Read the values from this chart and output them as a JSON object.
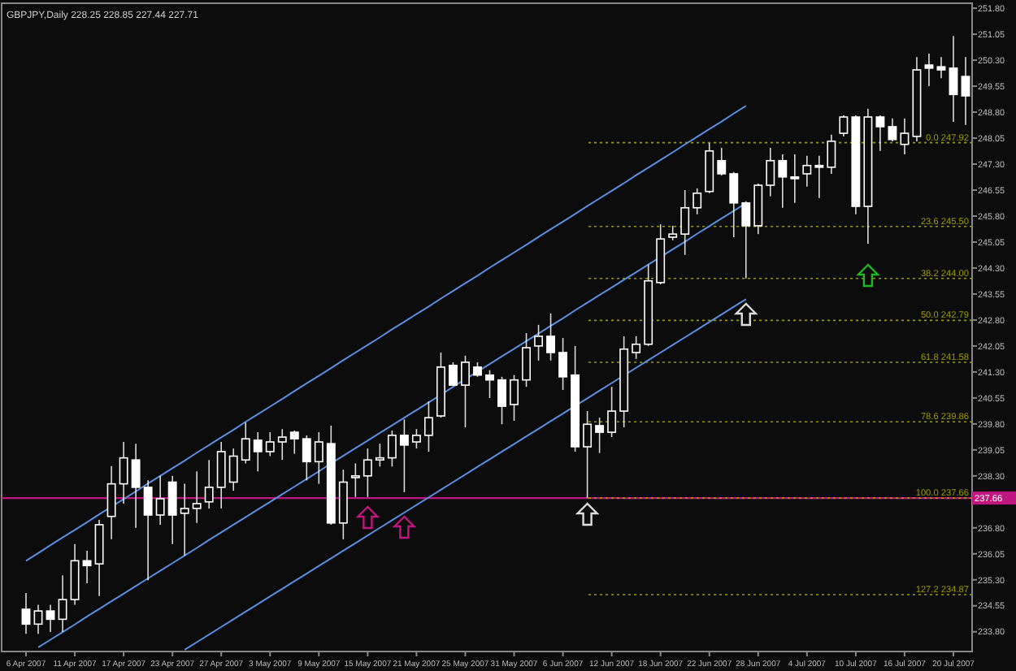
{
  "chart_data": {
    "type": "candlestick",
    "title": "GBPJPY,Daily  228.25 228.85 227.44 227.71",
    "categories": [
      "6 Apr 2007",
      null,
      null,
      null,
      "11 Apr 2007",
      null,
      null,
      null,
      "17 Apr 2007",
      null,
      null,
      null,
      "23 Apr 2007",
      null,
      null,
      null,
      "27 Apr 2007",
      null,
      null,
      null,
      "3 May 2007",
      null,
      null,
      null,
      "9 May 2007",
      null,
      null,
      null,
      "15 May 2007",
      null,
      null,
      null,
      "21 May 2007",
      null,
      null,
      null,
      "25 May 2007",
      null,
      null,
      null,
      "31 May 2007",
      null,
      null,
      null,
      "6 Jun 2007",
      null,
      null,
      null,
      "12 Jun 2007",
      null,
      null,
      null,
      "18 Jun 2007",
      null,
      null,
      null,
      "22 Jun 2007",
      null,
      null,
      null,
      "28 Jun 2007",
      null,
      null,
      null,
      "4 Jul 2007",
      null,
      null,
      null,
      "10 Jul 2007",
      null,
      null,
      null,
      "16 Jul 2007",
      null,
      null,
      null,
      "20 Jul 2007",
      null
    ],
    "series": [
      {
        "type": "line",
        "color": "#5b8fe0",
        "values": [
          235.85,
          236.07,
          236.3,
          236.52,
          236.74,
          236.96,
          237.19,
          237.41,
          237.63,
          237.85,
          238.08,
          238.3,
          238.52,
          238.74,
          238.97,
          239.19,
          239.41,
          239.63,
          239.86,
          240.08,
          240.3,
          240.52,
          240.75,
          240.97,
          241.19,
          241.41,
          241.64,
          241.86,
          242.08,
          242.3,
          242.53,
          242.75,
          242.97,
          243.19,
          243.42,
          243.64,
          243.86,
          244.08,
          244.31,
          244.53,
          244.75,
          244.97,
          245.2,
          245.42,
          245.64,
          245.86,
          246.09,
          246.31,
          246.53,
          246.75,
          246.98,
          247.2,
          247.42,
          247.64,
          247.87,
          248.09,
          248.31,
          248.53,
          248.76,
          248.98,
          null,
          null,
          null,
          null,
          null,
          null,
          null,
          null,
          null,
          null,
          null,
          null,
          null,
          null,
          null,
          null,
          null,
          null
        ]
      },
      {
        "type": "line",
        "color": "#5b8fe0",
        "values": [
          null,
          233.35,
          233.57,
          233.79,
          234.01,
          234.24,
          234.46,
          234.68,
          234.9,
          235.12,
          235.34,
          235.56,
          235.78,
          236.0,
          236.22,
          236.45,
          236.67,
          236.89,
          237.11,
          237.33,
          237.55,
          237.77,
          237.99,
          238.21,
          238.43,
          238.66,
          238.88,
          239.1,
          239.32,
          239.54,
          239.76,
          239.98,
          240.2,
          240.42,
          240.64,
          240.87,
          241.09,
          241.31,
          241.53,
          241.75,
          241.97,
          242.19,
          242.41,
          242.63,
          242.85,
          243.08,
          243.3,
          243.52,
          243.74,
          243.96,
          244.18,
          244.4,
          244.62,
          244.84,
          245.06,
          245.29,
          245.51,
          245.73,
          245.95,
          246.17,
          null,
          null,
          null,
          null,
          null,
          null,
          null,
          null,
          null,
          null,
          null,
          null,
          null,
          null,
          null,
          null,
          null,
          null
        ]
      },
      {
        "type": "line",
        "color": "#5b8fe0",
        "values": [
          null,
          null,
          null,
          null,
          null,
          null,
          null,
          null,
          null,
          null,
          null,
          null,
          null,
          233.28,
          233.5,
          233.72,
          233.94,
          234.16,
          234.38,
          234.6,
          234.82,
          235.04,
          235.26,
          235.48,
          235.7,
          235.92,
          236.14,
          236.36,
          236.58,
          236.8,
          237.02,
          237.24,
          237.46,
          237.68,
          237.9,
          238.12,
          238.34,
          238.56,
          238.78,
          239.0,
          239.22,
          239.44,
          239.66,
          239.88,
          240.1,
          240.32,
          240.54,
          240.76,
          240.98,
          241.2,
          241.42,
          241.64,
          241.86,
          242.08,
          242.3,
          242.52,
          242.74,
          242.96,
          243.18,
          243.4,
          null,
          null,
          null,
          null,
          null,
          null,
          null,
          null,
          null,
          null,
          null,
          null,
          null,
          null,
          null,
          null,
          null,
          null
        ]
      },
      {
        "type": "candlestick",
        "color": "#ffffff",
        "ohlc": [
          [
            234.45,
            234.92,
            233.74,
            234.02
          ],
          [
            234.02,
            234.58,
            233.74,
            234.4
          ],
          [
            234.4,
            234.58,
            233.79,
            234.16
          ],
          [
            234.16,
            235.43,
            233.79,
            234.73
          ],
          [
            234.73,
            236.33,
            234.58,
            235.85
          ],
          [
            235.85,
            236.14,
            235.2,
            235.71
          ],
          [
            235.76,
            237.03,
            234.83,
            236.89
          ],
          [
            237.13,
            238.58,
            236.47,
            238.07
          ],
          [
            238.07,
            239.28,
            237.5,
            238.82
          ],
          [
            238.76,
            239.23,
            236.8,
            237.97
          ],
          [
            237.97,
            238.17,
            235.29,
            237.17
          ],
          [
            237.17,
            238.3,
            236.89,
            237.64
          ],
          [
            238.12,
            238.3,
            236.33,
            237.17
          ],
          [
            237.22,
            238.07,
            236.0,
            237.36
          ],
          [
            237.36,
            238.43,
            236.94,
            237.5
          ],
          [
            237.55,
            238.76,
            237.36,
            237.97
          ],
          [
            237.97,
            239.28,
            237.36,
            239.0
          ],
          [
            238.12,
            239.09,
            237.87,
            238.87
          ],
          [
            238.76,
            239.84,
            238.66,
            239.37
          ],
          [
            239.33,
            239.56,
            238.43,
            239.0
          ],
          [
            239.0,
            239.56,
            238.87,
            239.28
          ],
          [
            239.28,
            239.65,
            238.76,
            239.42
          ],
          [
            239.56,
            239.61,
            238.94,
            239.37
          ],
          [
            239.37,
            239.47,
            238.17,
            238.71
          ],
          [
            238.71,
            239.56,
            238.07,
            239.28
          ],
          [
            239.23,
            239.75,
            236.89,
            236.94
          ],
          [
            236.94,
            238.48,
            236.47,
            238.12
          ],
          [
            238.25,
            238.66,
            237.69,
            238.3
          ],
          [
            238.3,
            239.09,
            237.69,
            238.76
          ],
          [
            238.76,
            239.23,
            238.57,
            238.82
          ],
          [
            238.82,
            239.61,
            238.57,
            239.47
          ],
          [
            239.47,
            239.93,
            237.83,
            239.19
          ],
          [
            239.28,
            239.65,
            239.09,
            239.47
          ],
          [
            239.47,
            240.45,
            239.0,
            239.98
          ],
          [
            240.03,
            241.86,
            239.98,
            241.44
          ],
          [
            241.49,
            241.58,
            240.9,
            240.92
          ],
          [
            240.92,
            241.77,
            239.7,
            241.58
          ],
          [
            241.44,
            241.58,
            241.16,
            241.21
          ],
          [
            241.21,
            241.35,
            240.55,
            241.07
          ],
          [
            241.07,
            241.16,
            239.79,
            240.31
          ],
          [
            240.36,
            241.21,
            239.89,
            241.07
          ],
          [
            241.07,
            242.42,
            240.87,
            242.0
          ],
          [
            242.05,
            242.66,
            241.63,
            242.33
          ],
          [
            242.33,
            242.99,
            241.63,
            241.86
          ],
          [
            241.86,
            242.28,
            240.78,
            241.16
          ],
          [
            241.21,
            242.05,
            239.0,
            239.14
          ],
          [
            239.14,
            240.17,
            237.66,
            239.79
          ],
          [
            239.75,
            239.98,
            238.96,
            239.56
          ],
          [
            239.56,
            240.87,
            239.42,
            240.17
          ],
          [
            240.17,
            242.33,
            239.7,
            241.96
          ],
          [
            241.86,
            242.33,
            241.68,
            242.1
          ],
          [
            242.1,
            244.4,
            242.05,
            243.93
          ],
          [
            243.88,
            245.56,
            243.83,
            245.14
          ],
          [
            245.19,
            245.52,
            245.1,
            245.28
          ],
          [
            245.28,
            246.55,
            244.68,
            246.04
          ],
          [
            246.04,
            246.6,
            245.85,
            246.46
          ],
          [
            246.51,
            247.91,
            246.46,
            247.68
          ],
          [
            247.4,
            247.77,
            246.97,
            247.02
          ],
          [
            247.02,
            247.07,
            245.19,
            246.18
          ],
          [
            246.18,
            246.23,
            244.0,
            245.52
          ],
          [
            245.52,
            246.74,
            245.28,
            246.69
          ],
          [
            246.69,
            247.77,
            246.37,
            247.4
          ],
          [
            247.4,
            247.58,
            246.04,
            246.93
          ],
          [
            246.93,
            247.58,
            246.18,
            246.88
          ],
          [
            247.02,
            247.54,
            246.65,
            247.26
          ],
          [
            247.26,
            247.54,
            246.32,
            247.21
          ],
          [
            247.21,
            248.15,
            247.02,
            247.96
          ],
          [
            248.19,
            248.71,
            248.1,
            248.66
          ],
          [
            248.66,
            248.71,
            245.85,
            246.08
          ],
          [
            246.08,
            248.9,
            245.0,
            248.66
          ],
          [
            248.66,
            248.71,
            247.68,
            248.38
          ],
          [
            248.38,
            248.62,
            247.96,
            248.01
          ],
          [
            247.87,
            248.62,
            247.58,
            248.19
          ],
          [
            248.1,
            250.39,
            247.96,
            250.02
          ],
          [
            250.16,
            250.49,
            249.55,
            250.07
          ],
          [
            250.11,
            250.39,
            249.78,
            250.02
          ],
          [
            250.07,
            251.0,
            248.52,
            249.31
          ],
          [
            249.83,
            250.39,
            248.43,
            249.27
          ]
        ]
      }
    ],
    "ylim": [
      233.23,
      251.85
    ],
    "yticks": [
      {
        "value": 251.8,
        "label": "251.80"
      },
      251.05,
      {
        "value": 250.3,
        "label": "250.30"
      },
      249.55,
      {
        "value": 248.8,
        "label": "248.80"
      },
      248.05,
      {
        "value": 247.3,
        "label": "247.30"
      },
      246.55,
      {
        "value": 245.8,
        "label": "245.80"
      },
      245.05,
      {
        "value": 244.3,
        "label": "244.30"
      },
      243.55,
      {
        "value": 242.8,
        "label": "242.80"
      },
      242.05,
      {
        "value": 241.3,
        "label": "241.30"
      },
      240.55,
      {
        "value": 239.8,
        "label": "239.80"
      },
      239.05,
      {
        "value": 238.3,
        "label": "238.30"
      },
      {
        "value": 236.8,
        "label": "236.80"
      },
      236.05,
      {
        "value": 235.3,
        "label": "235.30"
      },
      234.55,
      {
        "value": 233.8,
        "label": "233.80"
      }
    ],
    "ref_lines": [
      {
        "axis": "y",
        "value": 237.66,
        "label": "237.66",
        "color": "#c0167f",
        "line_style": "solid"
      },
      {
        "axis": "y",
        "value": 247.92,
        "label": "0.0  247.92",
        "color": "#9a9a00",
        "line_style": "dotted"
      },
      {
        "axis": "y",
        "value": 245.5,
        "label": "23.6  245.50",
        "color": "#9a9a00",
        "line_style": "dotted"
      },
      {
        "axis": "y",
        "value": 244.0,
        "label": "38.2  244.00",
        "color": "#9a9a00",
        "line_style": "dotted"
      },
      {
        "axis": "y",
        "value": 242.79,
        "label": "50.0  242.79",
        "color": "#9a9a00",
        "line_style": "dotted"
      },
      {
        "axis": "y",
        "value": 241.58,
        "label": "61.8  241.58",
        "color": "#9a9a00",
        "line_style": "dotted"
      },
      {
        "axis": "y",
        "value": 239.86,
        "label": "78.6  239.86",
        "color": "#9a9a00",
        "line_style": "dotted"
      },
      {
        "axis": "y",
        "value": 237.66,
        "label": "100.0  237.66",
        "color": "#9a9a00",
        "line_style": "dotted"
      },
      {
        "axis": "y",
        "value": 234.87,
        "label": "127.2  234.87",
        "color": "#9a9a00",
        "line_style": "dotted"
      }
    ]
  }
}
